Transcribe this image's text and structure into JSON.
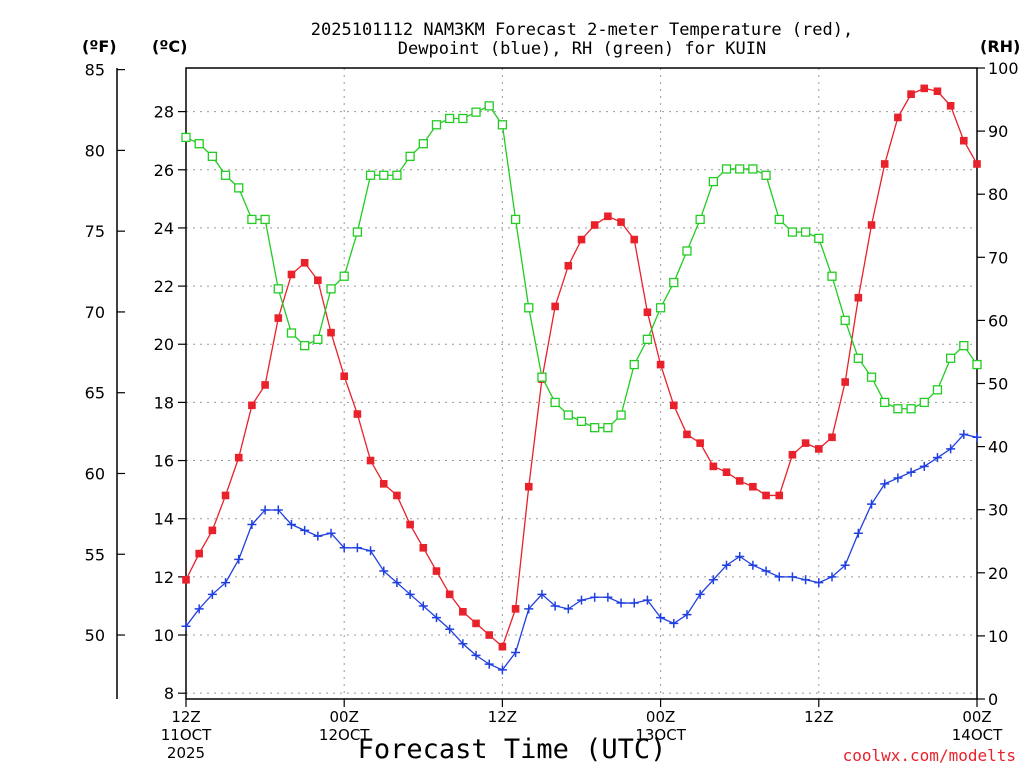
{
  "chart_data": {
    "type": "line",
    "title_lines": [
      "2025101112 NAM3KM Forecast 2-meter Temperature (red),",
      "Dewpoint (blue), RH (green) for KUIN"
    ],
    "xlabel": "Forecast Time (UTC)",
    "unit_labels": {
      "fahrenheit": "(ºF)",
      "celsius": "(ºC)",
      "rh": "(RH)"
    },
    "credit": "coolwx.com/modelts",
    "x_range_hours": [
      0,
      60
    ],
    "x_ticks": [
      {
        "hour": 0,
        "lines": [
          "12Z",
          "11OCT",
          "2025"
        ]
      },
      {
        "hour": 12,
        "lines": [
          "00Z",
          "12OCT"
        ]
      },
      {
        "hour": 24,
        "lines": [
          "12Z"
        ]
      },
      {
        "hour": 36,
        "lines": [
          "00Z",
          "13OCT"
        ]
      },
      {
        "hour": 48,
        "lines": [
          "12Z"
        ]
      },
      {
        "hour": 60,
        "lines": [
          "00Z",
          "14OCT"
        ]
      }
    ],
    "celsius_axis": {
      "range": [
        7.8,
        29.5
      ],
      "ticks": [
        8,
        10,
        12,
        14,
        16,
        18,
        20,
        22,
        24,
        26,
        28
      ]
    },
    "fahrenheit_axis": {
      "ticks": [
        50,
        55,
        60,
        65,
        70,
        75,
        80,
        85
      ]
    },
    "rh_axis": {
      "range": [
        0,
        100
      ],
      "ticks": [
        0,
        10,
        20,
        30,
        40,
        50,
        60,
        70,
        80,
        90,
        100
      ]
    },
    "series": [
      {
        "name": "2-meter Temperature",
        "unit": "C",
        "color": "#e8212b",
        "marker": "filled-square",
        "values": [
          11.9,
          12.8,
          13.6,
          14.8,
          16.1,
          17.9,
          18.6,
          20.9,
          22.4,
          22.8,
          22.2,
          20.4,
          18.9,
          17.6,
          16.0,
          15.2,
          14.8,
          13.8,
          13.0,
          12.2,
          11.4,
          10.8,
          10.4,
          10.0,
          9.6,
          10.9,
          15.1,
          18.8,
          21.3,
          22.7,
          23.6,
          24.1,
          24.4,
          24.2,
          23.6,
          21.1,
          19.3,
          17.9,
          16.9,
          16.6,
          15.8,
          15.6,
          15.3,
          15.1,
          14.8,
          14.8,
          16.2,
          16.6,
          16.4,
          16.8,
          18.7,
          21.6,
          24.1,
          26.2,
          27.8,
          28.6,
          28.8,
          28.7,
          28.2,
          27.0,
          26.2
        ]
      },
      {
        "name": "Dewpoint",
        "unit": "C",
        "color": "#1f3fe0",
        "marker": "plus",
        "values": [
          10.3,
          10.9,
          11.4,
          11.8,
          12.6,
          13.8,
          14.3,
          14.3,
          13.8,
          13.6,
          13.4,
          13.5,
          13.0,
          13.0,
          12.9,
          12.2,
          11.8,
          11.4,
          11.0,
          10.6,
          10.2,
          9.7,
          9.3,
          9.0,
          8.8,
          9.4,
          10.9,
          11.4,
          11.0,
          10.9,
          11.2,
          11.3,
          11.3,
          11.1,
          11.1,
          11.2,
          10.6,
          10.4,
          10.7,
          11.4,
          11.9,
          12.4,
          12.7,
          12.4,
          12.2,
          12.0,
          12.0,
          11.9,
          11.8,
          12.0,
          12.4,
          13.5,
          14.5,
          15.2,
          15.4,
          15.6,
          15.8,
          16.1,
          16.4,
          16.9,
          16.8
        ]
      },
      {
        "name": "RH",
        "unit": "%",
        "color": "#22cc22",
        "marker": "open-square",
        "values": [
          89,
          88,
          86,
          83,
          81,
          76,
          76,
          65,
          58,
          56,
          57,
          65,
          67,
          74,
          83,
          83,
          83,
          86,
          88,
          91,
          92,
          92,
          93,
          94,
          91,
          76,
          62,
          51,
          47,
          45,
          44,
          43,
          43,
          45,
          53,
          57,
          62,
          66,
          71,
          76,
          82,
          84,
          84,
          84,
          83,
          76,
          74,
          74,
          73,
          67,
          60,
          54,
          51,
          47,
          46,
          46,
          47,
          49,
          54,
          56,
          53
        ]
      }
    ]
  }
}
